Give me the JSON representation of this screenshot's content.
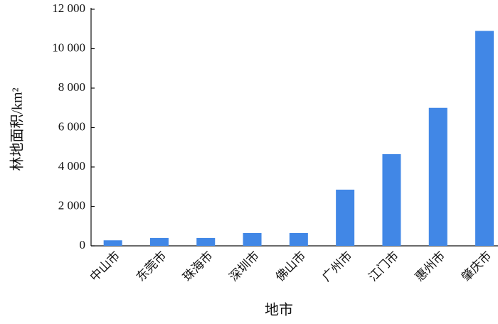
{
  "chart_data": {
    "type": "bar",
    "x_label": "地市",
    "y_label": "林地面积/km²",
    "categories": [
      "中山市",
      "东莞市",
      "珠海市",
      "深圳市",
      "佛山市",
      "广州市",
      "江门市",
      "惠州市",
      "肇庆市"
    ],
    "values": [
      280,
      400,
      400,
      650,
      650,
      2850,
      4650,
      7000,
      10900
    ],
    "color": "#4187e6",
    "ylim": [
      0,
      12000
    ],
    "yticks": [
      0,
      {
        "value": 2000,
        "label": "2 000"
      },
      {
        "value": 4000,
        "label": "4 000"
      },
      {
        "value": 6000,
        "label": "6 000"
      },
      {
        "value": 8000,
        "label": "8 000"
      },
      {
        "value": 10000,
        "label": "10 000"
      },
      {
        "value": 12000,
        "label": "12 000"
      }
    ],
    "grid": false
  }
}
